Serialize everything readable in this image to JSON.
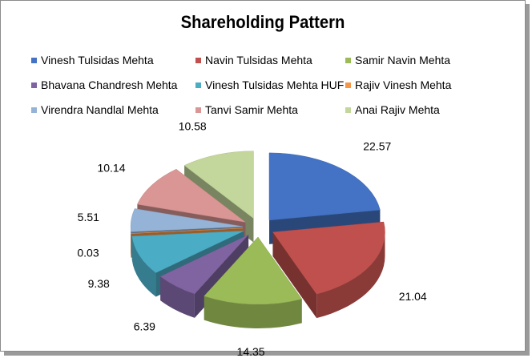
{
  "chart_data": {
    "type": "pie",
    "title": "Shareholding Pattern",
    "legend_position": "top",
    "series": [
      {
        "name": "Vinesh Tulsidas Mehta",
        "value": 22.57,
        "label": "22.57",
        "color": "#4472c4"
      },
      {
        "name": "Navin Tulsidas Mehta",
        "value": 21.04,
        "label": "21.04",
        "color": "#c0504d"
      },
      {
        "name": "Samir Navin Mehta",
        "value": 14.35,
        "label": "14.35",
        "color": "#9bbb59"
      },
      {
        "name": "Bhavana Chandresh Mehta",
        "value": 6.39,
        "label": "6.39",
        "color": "#8064a2"
      },
      {
        "name": "Vinesh Tulsidas Mehta HUF",
        "value": 9.38,
        "label": "9.38",
        "color": "#4bacc6"
      },
      {
        "name": "Rajiv Vinesh Mehta",
        "value": 0.03,
        "label": "0.03",
        "color": "#f79646"
      },
      {
        "name": "Virendra Nandlal Mehta",
        "value": 5.51,
        "label": "5.51",
        "color": "#95b3d7"
      },
      {
        "name": "Tanvi Samir Mehta",
        "value": 10.14,
        "label": "10.14",
        "color": "#d99694"
      },
      {
        "name": "Anai Rajiv Mehta",
        "value": 10.58,
        "label": "10.58",
        "color": "#c3d69b"
      }
    ]
  }
}
